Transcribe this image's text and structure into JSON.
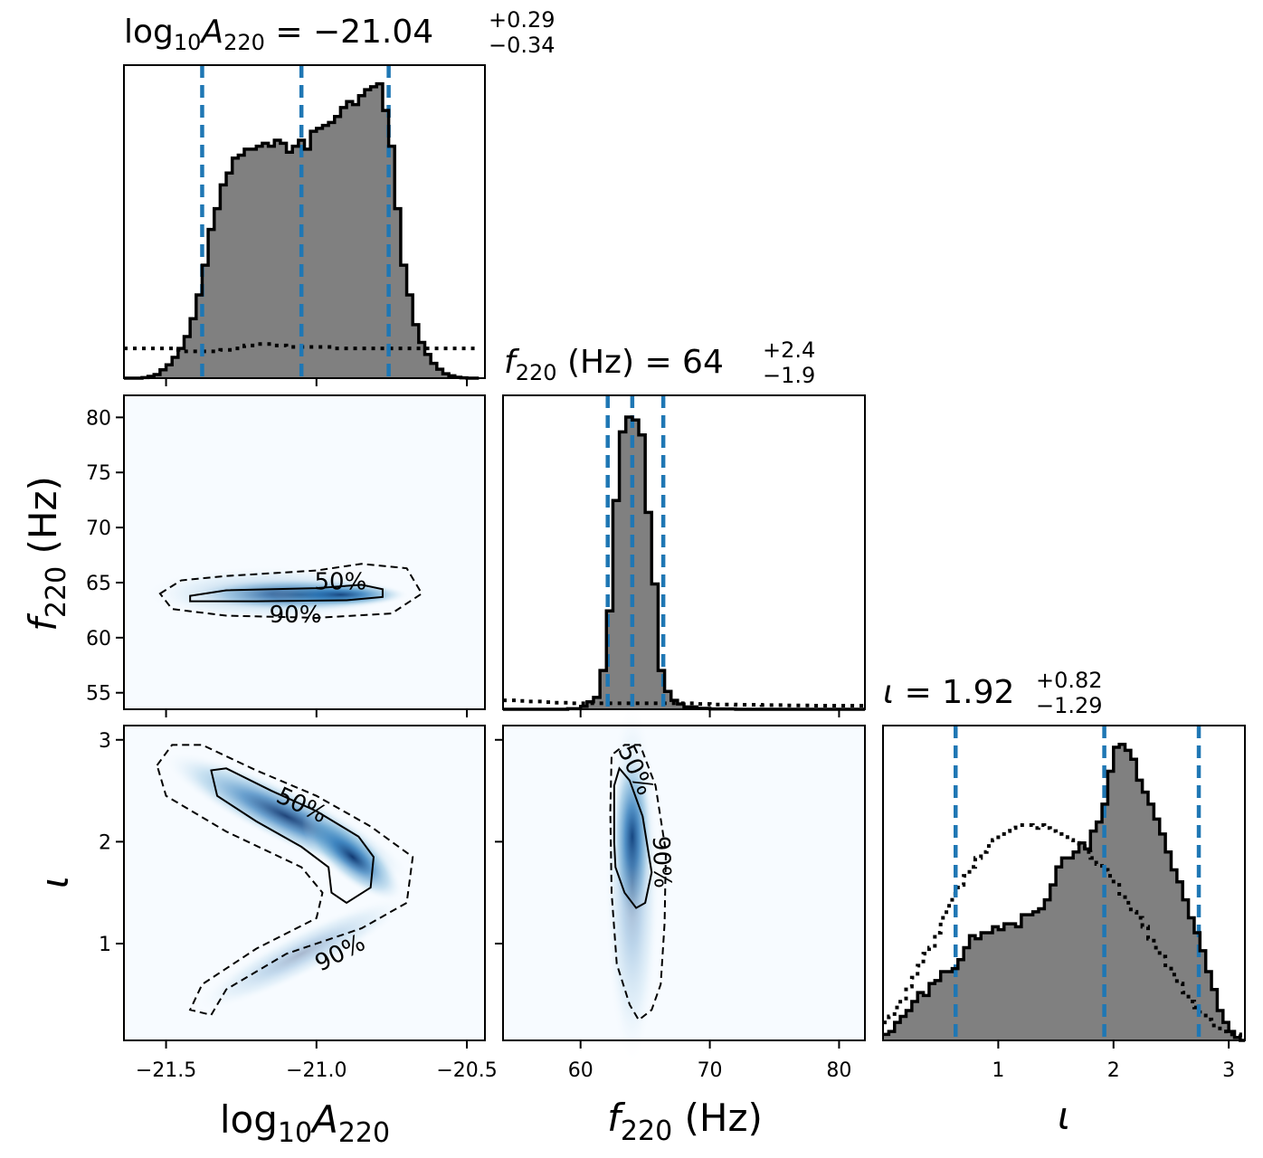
{
  "chart_data": {
    "type": "corner",
    "parameters": [
      {
        "key": "logA",
        "title": {
          "lhs": "log",
          "sub1": "10",
          "sym": "A",
          "sub2": "220",
          "eq": " = −21.04",
          "plus": "+0.29",
          "minus": "−0.34"
        },
        "axis_label": {
          "a": "log",
          "b": "10",
          "c": "A",
          "d": "220"
        },
        "range": [
          -21.64,
          -20.44
        ],
        "ticks": [
          -21.5,
          -21.0,
          -20.5
        ],
        "tick_labels": [
          "−21.5",
          "−21.0",
          "−20.5"
        ],
        "quantiles": [
          -21.38,
          -21.05,
          -20.76
        ],
        "hist_bins": [
          -21.64,
          -21.62,
          -21.6,
          -21.58,
          -21.56,
          -21.54,
          -21.52,
          -21.5,
          -21.48,
          -21.46,
          -21.44,
          -21.42,
          -21.4,
          -21.38,
          -21.36,
          -21.34,
          -21.32,
          -21.3,
          -21.28,
          -21.26,
          -21.24,
          -21.22,
          -21.2,
          -21.18,
          -21.16,
          -21.14,
          -21.12,
          -21.1,
          -21.08,
          -21.06,
          -21.04,
          -21.02,
          -21.0,
          -20.98,
          -20.96,
          -20.94,
          -20.92,
          -20.9,
          -20.88,
          -20.86,
          -20.84,
          -20.82,
          -20.8,
          -20.78,
          -20.76,
          -20.74,
          -20.72,
          -20.7,
          -20.68,
          -20.66,
          -20.64,
          -20.62,
          -20.6,
          -20.58,
          -20.56,
          -20.54,
          -20.52,
          -20.5,
          -20.48,
          -20.46
        ],
        "hist_values": [
          0.0,
          0.0,
          0.0,
          0.002,
          0.006,
          0.012,
          0.028,
          0.045,
          0.07,
          0.1,
          0.14,
          0.2,
          0.28,
          0.38,
          0.5,
          0.57,
          0.65,
          0.69,
          0.74,
          0.75,
          0.77,
          0.77,
          0.78,
          0.79,
          0.78,
          0.8,
          0.79,
          0.76,
          0.78,
          0.8,
          0.77,
          0.83,
          0.84,
          0.85,
          0.86,
          0.88,
          0.91,
          0.93,
          0.92,
          0.95,
          0.97,
          0.98,
          0.99,
          0.9,
          0.78,
          0.57,
          0.38,
          0.28,
          0.18,
          0.12,
          0.08,
          0.05,
          0.03,
          0.015,
          0.008,
          0.003,
          0.001,
          0.0,
          0.0
        ],
        "prior_values": [
          0.1,
          0.1,
          0.1,
          0.1,
          0.1,
          0.1,
          0.1,
          0.1,
          0.1,
          0.095,
          0.09,
          0.09,
          0.09,
          0.09,
          0.09,
          0.09,
          0.095,
          0.095,
          0.1,
          0.1,
          0.11,
          0.11,
          0.115,
          0.115,
          0.115,
          0.11,
          0.11,
          0.105,
          0.105,
          0.105,
          0.105,
          0.105,
          0.105,
          0.105,
          0.105,
          0.1,
          0.1,
          0.1,
          0.1,
          0.1,
          0.1,
          0.1,
          0.1,
          0.1,
          0.1,
          0.1,
          0.1,
          0.1,
          0.1,
          0.1,
          0.1,
          0.1,
          0.1,
          0.1,
          0.1,
          0.1,
          0.1,
          0.1,
          0.1
        ]
      },
      {
        "key": "f",
        "title": {
          "sym": "f",
          "sub": "220",
          "rest": " (Hz) = 64",
          "plus": "+2.4",
          "minus": "−1.9"
        },
        "axis_label": {
          "sym": "f",
          "sub": "220",
          "rest": " (Hz)"
        },
        "range": [
          54.0,
          82.0
        ],
        "ticks": [
          60,
          70,
          80
        ],
        "tick_labels": [
          "60",
          "70",
          "80"
        ],
        "y_ticks": [
          55,
          60,
          65,
          70,
          75,
          80
        ],
        "y_tick_labels": [
          "55",
          "60",
          "65",
          "70",
          "75",
          "80"
        ],
        "y_range": [
          53.5,
          82.0
        ],
        "quantiles": [
          62.1,
          64.0,
          66.4
        ],
        "hist_bins": [
          54,
          55,
          56,
          57,
          58,
          59,
          60,
          60.5,
          61,
          61.5,
          62,
          62.5,
          63,
          63.5,
          64,
          64.5,
          65,
          65.5,
          66,
          66.5,
          67,
          67.5,
          68,
          69,
          70,
          72,
          74,
          76,
          78,
          80,
          82
        ],
        "hist_values": [
          0,
          0,
          0,
          0,
          0,
          0.002,
          0.01,
          0.025,
          0.04,
          0.13,
          0.33,
          0.7,
          0.93,
          0.98,
          0.97,
          0.92,
          0.66,
          0.42,
          0.13,
          0.06,
          0.03,
          0.018,
          0.008,
          0.003,
          0.001,
          0,
          0,
          0,
          0,
          0
        ],
        "prior_values": [
          0.03,
          0.028,
          0.026,
          0.024,
          0.022,
          0.02,
          0.02,
          0.02,
          0.02,
          0.02,
          0.02,
          0.02,
          0.02,
          0.02,
          0.02,
          0.02,
          0.02,
          0.02,
          0.02,
          0.02,
          0.02,
          0.02,
          0.02,
          0.018,
          0.016,
          0.015,
          0.014,
          0.013,
          0.012,
          0.012
        ]
      },
      {
        "key": "iota",
        "title": {
          "sym": "ι",
          "eq": " = 1.92",
          "plus": "+0.82",
          "minus": "−1.29"
        },
        "axis_label": {
          "sym": "ι"
        },
        "range": [
          0.0,
          3.14
        ],
        "ticks": [
          1,
          2,
          3
        ],
        "tick_labels": [
          "1",
          "2",
          "3"
        ],
        "y_ticks": [
          1,
          2,
          3
        ],
        "y_tick_labels": [
          "1",
          "2",
          "3"
        ],
        "y_range": [
          0.05,
          3.14
        ],
        "quantiles": [
          0.63,
          1.92,
          2.74
        ],
        "hist_bins": [
          0.0,
          0.05,
          0.1,
          0.15,
          0.2,
          0.25,
          0.3,
          0.35,
          0.4,
          0.45,
          0.5,
          0.55,
          0.6,
          0.65,
          0.7,
          0.75,
          0.8,
          0.85,
          0.9,
          0.95,
          1.0,
          1.05,
          1.1,
          1.15,
          1.2,
          1.25,
          1.3,
          1.35,
          1.4,
          1.45,
          1.5,
          1.55,
          1.6,
          1.65,
          1.7,
          1.75,
          1.8,
          1.85,
          1.9,
          1.95,
          2.0,
          2.05,
          2.1,
          2.15,
          2.2,
          2.25,
          2.3,
          2.35,
          2.4,
          2.45,
          2.5,
          2.55,
          2.6,
          2.65,
          2.7,
          2.75,
          2.8,
          2.85,
          2.9,
          2.95,
          3.0,
          3.05,
          3.1,
          3.14
        ],
        "hist_values": [
          0.02,
          0.03,
          0.06,
          0.08,
          0.1,
          0.13,
          0.16,
          0.15,
          0.19,
          0.2,
          0.23,
          0.23,
          0.24,
          0.27,
          0.31,
          0.35,
          0.34,
          0.36,
          0.36,
          0.38,
          0.37,
          0.39,
          0.39,
          0.38,
          0.42,
          0.42,
          0.43,
          0.44,
          0.47,
          0.52,
          0.58,
          0.61,
          0.61,
          0.63,
          0.66,
          0.64,
          0.7,
          0.73,
          0.79,
          0.9,
          0.98,
          0.99,
          0.97,
          0.94,
          0.87,
          0.83,
          0.79,
          0.74,
          0.69,
          0.63,
          0.57,
          0.53,
          0.47,
          0.41,
          0.36,
          0.3,
          0.23,
          0.17,
          0.1,
          0.06,
          0.03,
          0.01,
          0.0
        ],
        "prior_values": [
          0.06,
          0.08,
          0.11,
          0.14,
          0.18,
          0.21,
          0.25,
          0.29,
          0.31,
          0.36,
          0.41,
          0.45,
          0.49,
          0.52,
          0.55,
          0.58,
          0.61,
          0.63,
          0.65,
          0.67,
          0.69,
          0.7,
          0.71,
          0.72,
          0.72,
          0.72,
          0.71,
          0.72,
          0.71,
          0.7,
          0.69,
          0.68,
          0.67,
          0.66,
          0.65,
          0.63,
          0.61,
          0.59,
          0.57,
          0.55,
          0.52,
          0.49,
          0.46,
          0.43,
          0.41,
          0.38,
          0.34,
          0.31,
          0.28,
          0.24,
          0.22,
          0.19,
          0.16,
          0.13,
          0.11,
          0.09,
          0.07,
          0.05,
          0.04,
          0.03,
          0.02,
          0.02,
          0.01
        ]
      }
    ],
    "contour_levels": [
      "50%",
      "90%"
    ],
    "colors": {
      "hist_fill": "#808080",
      "hist_edge": "#000000",
      "quantile_line": "#1f77b4",
      "density_low": "#f7fbff",
      "density_high": "#08306b"
    }
  }
}
